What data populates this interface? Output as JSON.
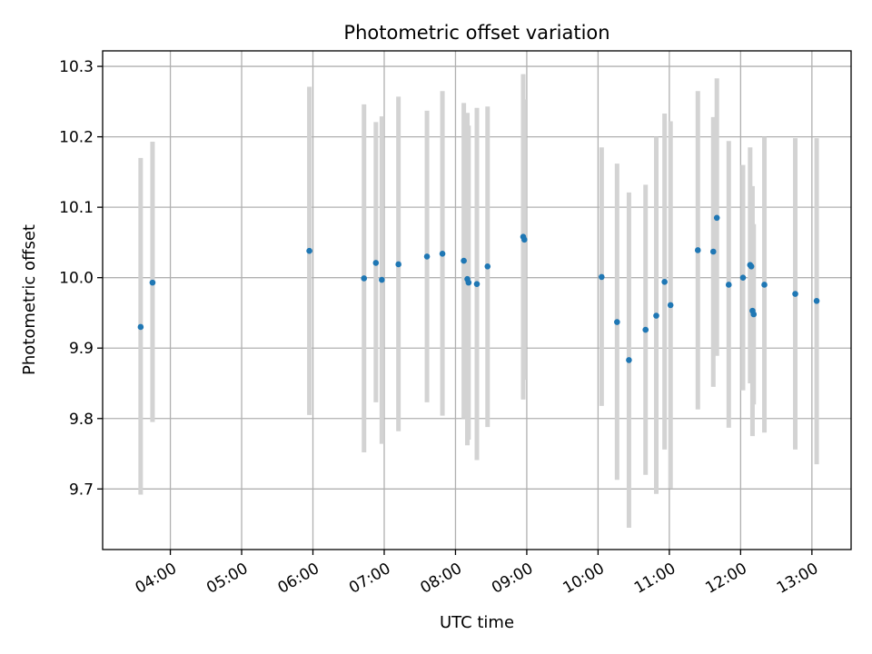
{
  "chart_data": {
    "type": "scatter",
    "title": "Photometric offset variation",
    "xlabel": "UTC time",
    "ylabel": "Photometric offset",
    "xlim": [
      "03:03",
      "13:33"
    ],
    "ylim": [
      9.614,
      10.322
    ],
    "x_ticks": [
      "04:00",
      "05:00",
      "06:00",
      "07:00",
      "08:00",
      "09:00",
      "10:00",
      "11:00",
      "12:00",
      "13:00"
    ],
    "y_ticks": [
      9.7,
      9.8,
      9.9,
      10.0,
      10.1,
      10.2,
      10.3
    ],
    "grid": true,
    "marker_color": "#1f77b4",
    "errorbar_color": "#d3d3d3",
    "points": [
      {
        "x": "03:35",
        "y": 9.93,
        "ylo": 9.692,
        "yhi": 10.17
      },
      {
        "x": "03:45",
        "y": 9.993,
        "ylo": 9.795,
        "yhi": 10.193
      },
      {
        "x": "05:57",
        "y": 10.038,
        "ylo": 9.805,
        "yhi": 10.271
      },
      {
        "x": "06:43",
        "y": 9.999,
        "ylo": 9.752,
        "yhi": 10.246
      },
      {
        "x": "06:53",
        "y": 10.021,
        "ylo": 9.823,
        "yhi": 10.221
      },
      {
        "x": "06:58",
        "y": 9.997,
        "ylo": 9.764,
        "yhi": 10.229
      },
      {
        "x": "07:12",
        "y": 10.019,
        "ylo": 9.782,
        "yhi": 10.257
      },
      {
        "x": "07:36",
        "y": 10.03,
        "ylo": 9.823,
        "yhi": 10.237
      },
      {
        "x": "07:49",
        "y": 10.034,
        "ylo": 9.804,
        "yhi": 10.265
      },
      {
        "x": "08:07",
        "y": 10.024,
        "ylo": 9.8,
        "yhi": 10.248
      },
      {
        "x": "08:10",
        "y": 9.998,
        "ylo": 9.762,
        "yhi": 10.234
      },
      {
        "x": "08:11",
        "y": 9.993,
        "ylo": 9.77,
        "yhi": 10.216
      },
      {
        "x": "08:18",
        "y": 9.991,
        "ylo": 9.741,
        "yhi": 10.241
      },
      {
        "x": "08:27",
        "y": 10.016,
        "ylo": 9.788,
        "yhi": 10.243
      },
      {
        "x": "08:57",
        "y": 10.058,
        "ylo": 9.827,
        "yhi": 10.289
      },
      {
        "x": "08:58",
        "y": 10.054,
        "ylo": 9.855,
        "yhi": 10.253
      },
      {
        "x": "10:03",
        "y": 10.001,
        "ylo": 9.818,
        "yhi": 10.185
      },
      {
        "x": "10:16",
        "y": 9.937,
        "ylo": 9.713,
        "yhi": 10.162
      },
      {
        "x": "10:26",
        "y": 9.883,
        "ylo": 9.645,
        "yhi": 10.121
      },
      {
        "x": "10:40",
        "y": 9.926,
        "ylo": 9.72,
        "yhi": 10.132
      },
      {
        "x": "10:49",
        "y": 9.946,
        "ylo": 9.693,
        "yhi": 10.2
      },
      {
        "x": "10:56",
        "y": 9.994,
        "ylo": 9.756,
        "yhi": 10.233
      },
      {
        "x": "11:01",
        "y": 9.961,
        "ylo": 9.701,
        "yhi": 10.222
      },
      {
        "x": "11:24",
        "y": 10.039,
        "ylo": 9.813,
        "yhi": 10.265
      },
      {
        "x": "11:37",
        "y": 10.037,
        "ylo": 9.845,
        "yhi": 10.228
      },
      {
        "x": "11:40",
        "y": 10.085,
        "ylo": 9.889,
        "yhi": 10.283
      },
      {
        "x": "11:50",
        "y": 9.99,
        "ylo": 9.787,
        "yhi": 10.194
      },
      {
        "x": "12:02",
        "y": 10.0,
        "ylo": 9.84,
        "yhi": 10.16
      },
      {
        "x": "12:08",
        "y": 10.018,
        "ylo": 9.85,
        "yhi": 10.185
      },
      {
        "x": "12:09",
        "y": 10.016,
        "ylo": 9.905,
        "yhi": 10.126
      },
      {
        "x": "12:10",
        "y": 9.953,
        "ylo": 9.775,
        "yhi": 10.13
      },
      {
        "x": "12:11",
        "y": 9.948,
        "ylo": 9.82,
        "yhi": 10.076
      },
      {
        "x": "12:20",
        "y": 9.99,
        "ylo": 9.78,
        "yhi": 10.2
      },
      {
        "x": "12:46",
        "y": 9.977,
        "ylo": 9.756,
        "yhi": 10.198
      },
      {
        "x": "13:04",
        "y": 9.967,
        "ylo": 9.735,
        "yhi": 10.198
      }
    ]
  }
}
